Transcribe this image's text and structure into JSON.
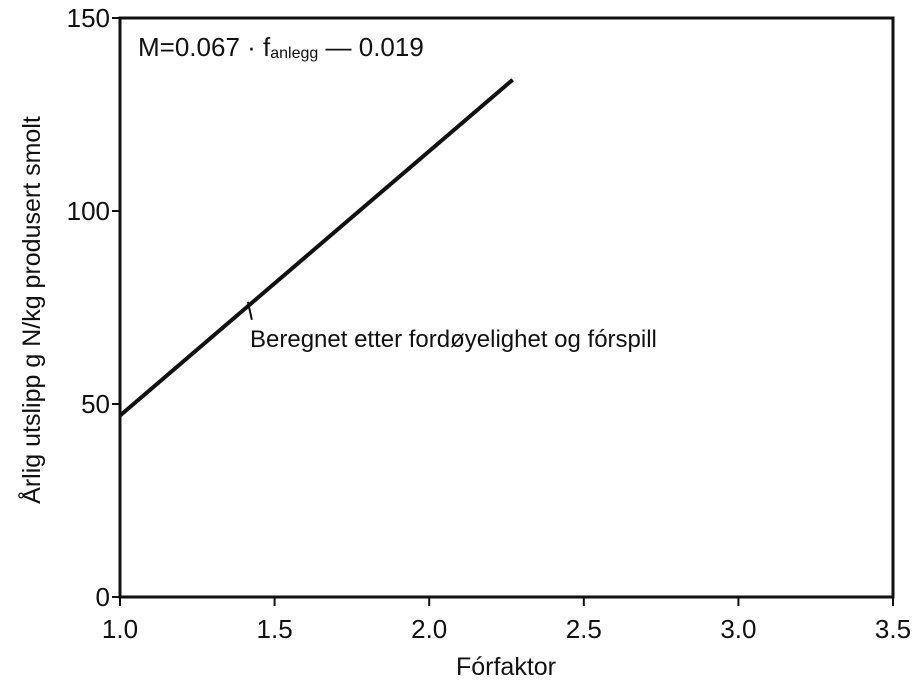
{
  "chart_data": {
    "type": "line",
    "title": "",
    "xlabel": "Fórfaktor",
    "ylabel": "Årlig utslipp g N/kg produsert smolt",
    "xlim": [
      1.0,
      3.5
    ],
    "ylim": [
      0,
      150
    ],
    "xticks": [
      "1.0",
      "1.5",
      "2.0",
      "2.5",
      "3.0",
      "3.5"
    ],
    "yticks": [
      "0",
      "50",
      "100",
      "150"
    ],
    "grid": false,
    "series": [
      {
        "x": [
          1.0,
          2.27
        ],
        "y": [
          47,
          134
        ],
        "color": "#111111"
      }
    ],
    "formula": {
      "prefix": "M=0.067 · f",
      "subscript": "anlegg",
      "suffix": " — 0.019"
    },
    "annotation": {
      "text": "Beregnet etter fordøyelighet og fórspill",
      "x": 1.42,
      "y": 77
    }
  }
}
